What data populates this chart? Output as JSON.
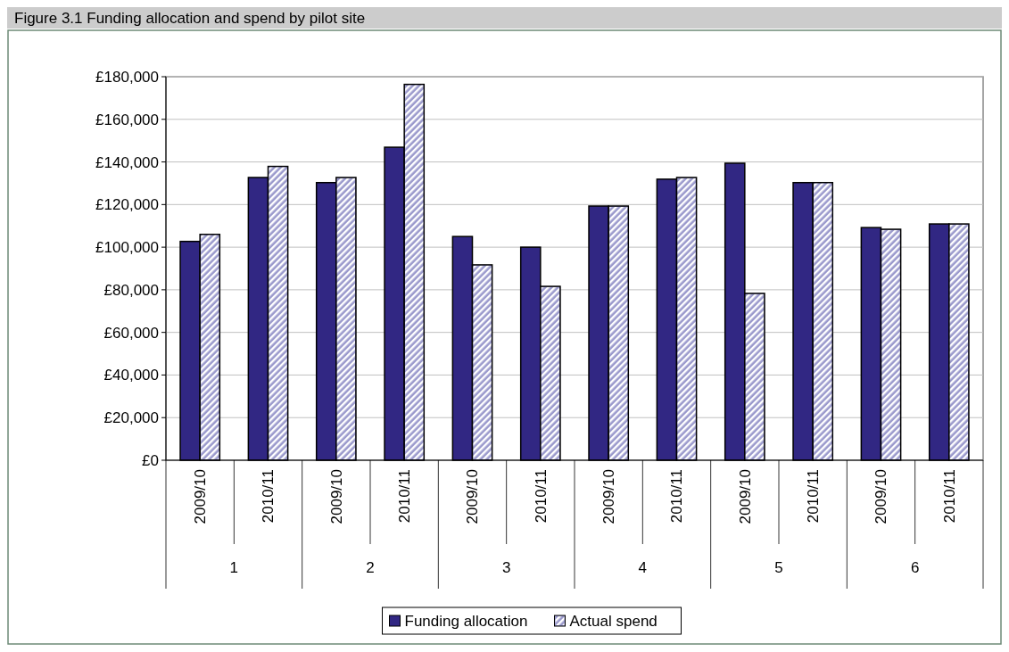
{
  "chart_data": {
    "type": "bar",
    "title": "Figure 3.1 Funding allocation and spend by pilot site",
    "categories": [
      "2009/10",
      "2010/11",
      "2009/10",
      "2010/11",
      "2009/10",
      "2010/11",
      "2009/10",
      "2010/11",
      "2009/10",
      "2010/11",
      "2009/10",
      "2010/11"
    ],
    "annotations": [
      "1",
      "2",
      "3",
      "4",
      "5",
      "6"
    ],
    "series": [
      {
        "name": "Funding allocation",
        "color": "#312783",
        "values": [
          102700,
          132700,
          130300,
          146900,
          105000,
          100000,
          119300,
          131900,
          139400,
          130300,
          109200,
          110900
        ]
      },
      {
        "name": "Actual spend",
        "color": "#9a99cc",
        "values": [
          106000,
          137900,
          132700,
          176400,
          91700,
          81600,
          119300,
          132700,
          78300,
          130300,
          108400,
          110900
        ]
      }
    ],
    "ylim": [
      0,
      180000
    ],
    "yticks": [
      {
        "value": 0,
        "label": "£0"
      },
      {
        "value": 20000,
        "label": "£20,000"
      },
      {
        "value": 40000,
        "label": "£40,000"
      },
      {
        "value": 60000,
        "label": "£60,000"
      },
      {
        "value": 80000,
        "label": "£80,000"
      },
      {
        "value": 100000,
        "label": "£100,000"
      },
      {
        "value": 120000,
        "label": "£120,000"
      },
      {
        "value": 140000,
        "label": "£140,000"
      },
      {
        "value": 160000,
        "label": "£160,000"
      },
      {
        "value": 180000,
        "label": "£180,000"
      }
    ],
    "grid": "y",
    "legend": "bottom"
  }
}
